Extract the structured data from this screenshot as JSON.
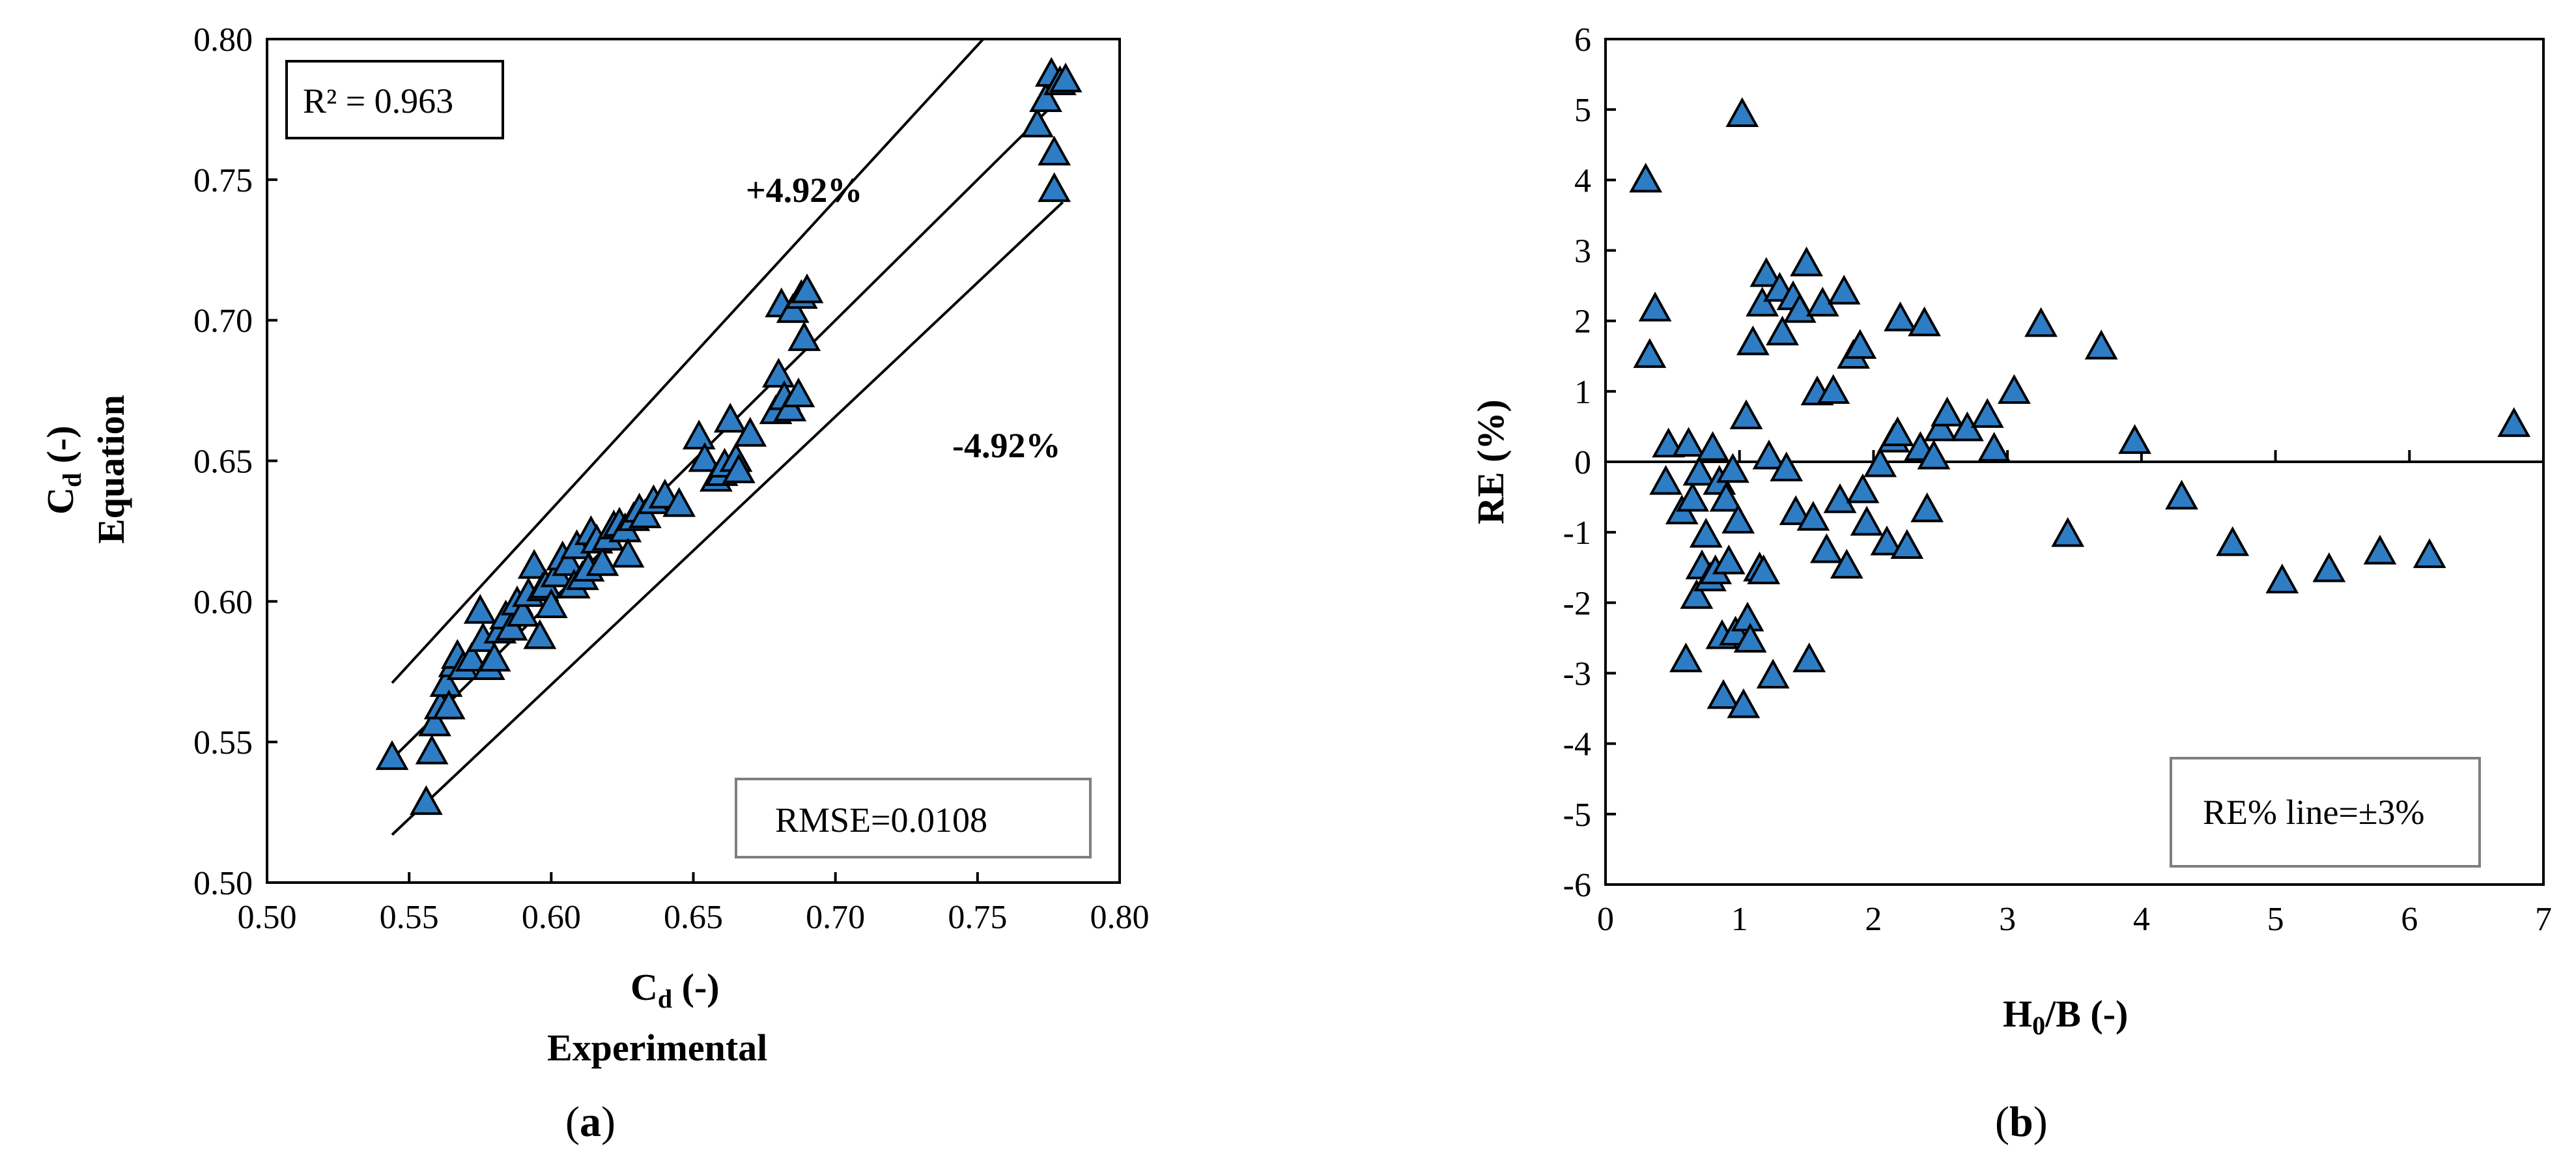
{
  "chart_data": [
    {
      "panel_label": "(a)",
      "type": "scatter",
      "title": "",
      "xlabel": "Cd (-)",
      "xlabel_line2": "Experimental",
      "ylabel": "Cd (-)",
      "ylabel_line2": "Equation",
      "xlim": [
        0.5,
        0.8
      ],
      "ylim": [
        0.5,
        0.8
      ],
      "xticks": [
        0.5,
        0.55,
        0.6,
        0.65,
        0.7,
        0.75,
        0.8
      ],
      "yticks": [
        0.5,
        0.55,
        0.6,
        0.65,
        0.7,
        0.75,
        0.8
      ],
      "xtick_labels": [
        "0.50",
        "0.55",
        "0.60",
        "0.65",
        "0.70",
        "0.75",
        "0.80"
      ],
      "ytick_labels": [
        "0.50",
        "0.55",
        "0.60",
        "0.65",
        "0.70",
        "0.75",
        "0.80"
      ],
      "r2_label": "R² = 0.963",
      "rmse_label": "RMSE=0.0108",
      "upper_band_label": "+4.92%",
      "lower_band_label": "-4.92%",
      "reference_lines": [
        {
          "name": "upper",
          "points": [
            [
              0.544,
              0.571
            ],
            [
              0.752,
              0.8
            ]
          ]
        },
        {
          "name": "one-to-one",
          "points": [
            [
              0.544,
              0.544
            ],
            [
              0.776,
              0.776
            ]
          ]
        },
        {
          "name": "lower",
          "points": [
            [
              0.544,
              0.517
            ],
            [
              0.78,
              0.742
            ]
          ]
        }
      ],
      "marker_color": "#2E7DC4",
      "x": [
        0.544,
        0.556,
        0.558,
        0.559,
        0.561,
        0.563,
        0.564,
        0.566,
        0.567,
        0.569,
        0.572,
        0.575,
        0.576,
        0.578,
        0.58,
        0.582,
        0.584,
        0.586,
        0.588,
        0.59,
        0.592,
        0.594,
        0.596,
        0.597,
        0.598,
        0.6,
        0.602,
        0.604,
        0.606,
        0.608,
        0.609,
        0.611,
        0.613,
        0.614,
        0.616,
        0.618,
        0.62,
        0.622,
        0.624,
        0.626,
        0.627,
        0.629,
        0.631,
        0.633,
        0.636,
        0.64,
        0.645,
        0.652,
        0.654,
        0.658,
        0.66,
        0.661,
        0.663,
        0.665,
        0.666,
        0.67,
        0.679,
        0.68,
        0.681,
        0.682,
        0.684,
        0.685,
        0.687,
        0.688,
        0.689,
        0.69,
        0.771,
        0.774,
        0.776,
        0.777,
        0.779,
        0.781,
        0.777
      ],
      "y": [
        0.544,
        0.528,
        0.546,
        0.556,
        0.562,
        0.57,
        0.562,
        0.577,
        0.58,
        0.576,
        0.579,
        0.596,
        0.586,
        0.576,
        0.579,
        0.589,
        0.594,
        0.59,
        0.599,
        0.595,
        0.602,
        0.612,
        0.587,
        0.604,
        0.605,
        0.598,
        0.609,
        0.615,
        0.613,
        0.605,
        0.619,
        0.608,
        0.611,
        0.624,
        0.621,
        0.613,
        0.622,
        0.626,
        0.627,
        0.625,
        0.616,
        0.629,
        0.632,
        0.63,
        0.635,
        0.637,
        0.634,
        0.658,
        0.65,
        0.643,
        0.645,
        0.648,
        0.664,
        0.65,
        0.646,
        0.659,
        0.667,
        0.68,
        0.705,
        0.672,
        0.668,
        0.703,
        0.673,
        0.708,
        0.693,
        0.71,
        0.769,
        0.778,
        0.787,
        0.759,
        0.784,
        0.785,
        0.746
      ]
    },
    {
      "panel_label": "(b)",
      "type": "scatter",
      "title": "",
      "xlabel": "H0/B (-)",
      "ylabel": "RE (%)",
      "xlim": [
        0,
        7
      ],
      "ylim": [
        -6,
        6
      ],
      "xticks": [
        0,
        1,
        2,
        3,
        4,
        5,
        6,
        7
      ],
      "yticks": [
        -6,
        -5,
        -4,
        -3,
        -2,
        -1,
        0,
        1,
        2,
        3,
        4,
        5,
        6
      ],
      "xtick_labels": [
        "0",
        "1",
        "2",
        "3",
        "4",
        "5",
        "6",
        "7"
      ],
      "ytick_labels": [
        "-6",
        "-5",
        "-4",
        "-3",
        "-2",
        "-1",
        "0",
        "1",
        "2",
        "3",
        "4",
        "5",
        "6"
      ],
      "re_line_label": "RE% line=±3%",
      "marker_color": "#2E7DC4",
      "x": [
        0.3,
        0.33,
        0.37,
        0.45,
        0.47,
        0.57,
        0.6,
        0.62,
        0.65,
        0.68,
        0.7,
        0.72,
        0.75,
        0.78,
        0.8,
        0.82,
        0.85,
        0.87,
        0.88,
        0.9,
        0.92,
        0.95,
        0.97,
        0.99,
        1.02,
        1.03,
        1.05,
        1.06,
        1.08,
        1.1,
        1.15,
        1.17,
        1.18,
        1.2,
        1.22,
        1.25,
        1.3,
        1.32,
        1.35,
        1.4,
        1.42,
        1.45,
        1.5,
        1.52,
        1.55,
        1.58,
        1.62,
        1.65,
        1.7,
        1.75,
        1.78,
        1.8,
        1.85,
        1.9,
        1.92,
        1.95,
        2.05,
        2.1,
        2.15,
        2.18,
        2.2,
        2.25,
        2.35,
        2.38,
        2.4,
        2.45,
        2.5,
        2.55,
        2.7,
        2.85,
        2.9,
        3.05,
        3.25,
        3.45,
        3.7,
        3.95,
        4.3,
        4.68,
        5.05,
        5.4,
        5.78,
        6.15,
        6.78
      ],
      "y": [
        3.98,
        1.49,
        2.15,
        -0.31,
        0.22,
        -0.73,
        -2.83,
        0.23,
        -0.55,
        -1.93,
        -0.18,
        -1.51,
        -1.06,
        -1.68,
        0.17,
        -1.58,
        -0.31,
        -2.5,
        -3.35,
        -0.55,
        -1.44,
        -0.14,
        -2.45,
        -0.86,
        4.91,
        -3.48,
        0.62,
        -2.25,
        -2.55,
        1.67,
        -1.54,
        2.22,
        -1.58,
        2.64,
        0.05,
        -3.06,
        2.43,
        1.81,
        -0.12,
        2.31,
        -0.74,
        2.13,
        2.79,
        -2.83,
        -0.82,
        0.96,
        2.22,
        -1.28,
        0.98,
        -0.57,
        2.39,
        -1.5,
        1.48,
        1.62,
        -0.43,
        -0.89,
        -0.06,
        -1.17,
        0.29,
        0.38,
        2.01,
        -1.22,
        0.17,
        1.94,
        -0.7,
        0.05,
        0.45,
        0.66,
        0.45,
        0.64,
        0.16,
        0.98,
        1.93,
        -1.05,
        1.61,
        0.27,
        -0.52,
        -1.18,
        -1.71,
        -1.55,
        -1.3,
        -1.35,
        0.51
      ]
    }
  ]
}
